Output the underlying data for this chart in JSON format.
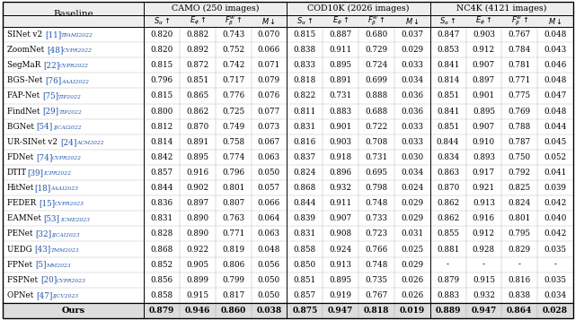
{
  "col_groups": [
    {
      "label": "CAMO (250 images)",
      "span": 4
    },
    {
      "label": "COD10K (2026 images)",
      "span": 4
    },
    {
      "label": "NC4K (4121 images)",
      "span": 4
    }
  ],
  "baseline_col_header": "Baseline",
  "rows": [
    {
      "name": "SINet v2 [11]",
      "name_ref": "11",
      "venue": "TPAMI2022",
      "camo": [
        0.82,
        0.882,
        0.743,
        0.07
      ],
      "cod10k": [
        0.815,
        0.887,
        0.68,
        0.037
      ],
      "nc4k": [
        0.847,
        0.903,
        0.767,
        0.048
      ]
    },
    {
      "name": "ZoomNet [48]",
      "venue": "CVPR2022",
      "camo": [
        0.82,
        0.892,
        0.752,
        0.066
      ],
      "cod10k": [
        0.838,
        0.911,
        0.729,
        0.029
      ],
      "nc4k": [
        0.853,
        0.912,
        0.784,
        0.043
      ]
    },
    {
      "name": "SegMaR [22]",
      "venue": "CVPR2022",
      "camo": [
        0.815,
        0.872,
        0.742,
        0.071
      ],
      "cod10k": [
        0.833,
        0.895,
        0.724,
        0.033
      ],
      "nc4k": [
        0.841,
        0.907,
        0.781,
        0.046
      ]
    },
    {
      "name": "BGS-Net [76]",
      "venue": "AAAI2022",
      "camo": [
        0.796,
        0.851,
        0.717,
        0.079
      ],
      "cod10k": [
        0.818,
        0.891,
        0.699,
        0.034
      ],
      "nc4k": [
        0.814,
        0.897,
        0.771,
        0.048
      ]
    },
    {
      "name": "FAP-Net [75]",
      "venue": "TIP2022",
      "camo": [
        0.815,
        0.865,
        0.776,
        0.076
      ],
      "cod10k": [
        0.822,
        0.731,
        0.888,
        0.036
      ],
      "nc4k": [
        0.851,
        0.901,
        0.775,
        0.047
      ]
    },
    {
      "name": "FindNet [29]",
      "venue": "TIP2022",
      "camo": [
        0.8,
        0.862,
        0.725,
        0.077
      ],
      "cod10k": [
        0.811,
        0.883,
        0.688,
        0.036
      ],
      "nc4k": [
        0.841,
        0.895,
        0.769,
        0.048
      ]
    },
    {
      "name": "BGNet [54]",
      "venue": "IJCAI2022",
      "camo": [
        0.812,
        0.87,
        0.749,
        0.073
      ],
      "cod10k": [
        0.831,
        0.901,
        0.722,
        0.033
      ],
      "nc4k": [
        0.851,
        0.907,
        0.788,
        0.044
      ]
    },
    {
      "name": "UR-SINet v2 [24]",
      "venue": "ACM2022",
      "camo": [
        0.814,
        0.891,
        0.758,
        0.067
      ],
      "cod10k": [
        0.816,
        0.903,
        0.708,
        0.033
      ],
      "nc4k": [
        0.844,
        0.91,
        0.787,
        0.045
      ]
    },
    {
      "name": "FDNet [74]",
      "venue": "CVPR2022",
      "camo": [
        0.842,
        0.895,
        0.774,
        0.063
      ],
      "cod10k": [
        0.837,
        0.918,
        0.731,
        0.03
      ],
      "nc4k": [
        0.834,
        0.893,
        0.75,
        0.052
      ]
    },
    {
      "name": "DTIT[39]",
      "venue": "ICPR2022",
      "camo": [
        0.857,
        0.916,
        0.796,
        0.05
      ],
      "cod10k": [
        0.824,
        0.896,
        0.695,
        0.034
      ],
      "nc4k": [
        0.863,
        0.917,
        0.792,
        0.041
      ]
    },
    {
      "name": "HitNet[18]",
      "venue": "AAAI2023",
      "camo": [
        0.844,
        0.902,
        0.801,
        0.057
      ],
      "cod10k": [
        0.868,
        0.932,
        0.798,
        0.024
      ],
      "nc4k": [
        0.87,
        0.921,
        0.825,
        0.039
      ]
    },
    {
      "name": "FEDER [15]",
      "venue": "CVPR2023",
      "camo": [
        0.836,
        0.897,
        0.807,
        0.066
      ],
      "cod10k": [
        0.844,
        0.911,
        0.748,
        0.029
      ],
      "nc4k": [
        0.862,
        0.913,
        0.824,
        0.042
      ]
    },
    {
      "name": "EAMNet [53]",
      "venue": "ICME2023",
      "camo": [
        0.831,
        0.89,
        0.763,
        0.064
      ],
      "cod10k": [
        0.839,
        0.907,
        0.733,
        0.029
      ],
      "nc4k": [
        0.862,
        0.916,
        0.801,
        0.04
      ]
    },
    {
      "name": "PENet [32]",
      "venue": "IJCAI2023",
      "camo": [
        0.828,
        0.89,
        0.771,
        0.063
      ],
      "cod10k": [
        0.831,
        0.908,
        0.723,
        0.031
      ],
      "nc4k": [
        0.855,
        0.912,
        0.795,
        0.042
      ]
    },
    {
      "name": "UEDG [43]",
      "venue": "TMM2023",
      "camo": [
        0.868,
        0.922,
        0.819,
        0.048
      ],
      "cod10k": [
        0.858,
        0.924,
        0.766,
        0.025
      ],
      "nc4k": [
        0.881,
        0.928,
        0.829,
        0.035
      ]
    },
    {
      "name": "FPNet [5]",
      "venue": "MM2023",
      "camo": [
        0.852,
        0.905,
        0.806,
        0.056
      ],
      "cod10k": [
        0.85,
        0.913,
        0.748,
        0.029
      ],
      "nc4k": [
        null,
        null,
        null,
        null
      ]
    },
    {
      "name": "FSPNet [20]",
      "venue": "CVPR2023",
      "camo": [
        0.856,
        0.899,
        0.799,
        0.05
      ],
      "cod10k": [
        0.851,
        0.895,
        0.735,
        0.026
      ],
      "nc4k": [
        0.879,
        0.915,
        0.816,
        0.035
      ]
    },
    {
      "name": "OPNet [47]",
      "venue": "IJCV2023",
      "camo": [
        0.858,
        0.915,
        0.817,
        0.05
      ],
      "cod10k": [
        0.857,
        0.919,
        0.767,
        0.026
      ],
      "nc4k": [
        0.883,
        0.932,
        0.838,
        0.034
      ]
    }
  ],
  "ours_row": {
    "name": "Ours",
    "camo": [
      0.879,
      0.946,
      0.86,
      0.038
    ],
    "cod10k": [
      0.875,
      0.947,
      0.818,
      0.019
    ],
    "nc4k": [
      0.889,
      0.947,
      0.864,
      0.028
    ]
  },
  "text_color_ref": "#2255aa",
  "border_color": "#000000",
  "fig_width": 6.4,
  "fig_height": 3.57,
  "dpi": 100
}
